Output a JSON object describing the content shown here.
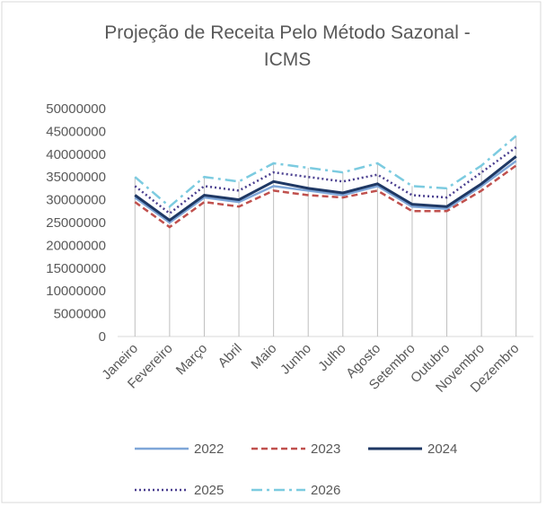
{
  "chart_data": {
    "type": "line",
    "title": "Projeção de Receita Pelo Método Sazonal - ICMS",
    "categories": [
      "Janeiro",
      "Fevereiro",
      "Março",
      "Abril",
      "Maio",
      "Junho",
      "Julho",
      "Agosto",
      "Setembro",
      "Outubro",
      "Novembro",
      "Dezembro"
    ],
    "series": [
      {
        "name": "2022",
        "color": "#7ea6d8",
        "dash": "solid",
        "values": [
          30500000,
          25000000,
          30500000,
          29500000,
          33000000,
          32000000,
          31000000,
          33000000,
          28500000,
          28000000,
          33000000,
          38500000
        ]
      },
      {
        "name": "2023",
        "color": "#c0504d",
        "dash": "dashed",
        "values": [
          29500000,
          24000000,
          29500000,
          28500000,
          32000000,
          31000000,
          30500000,
          32000000,
          27500000,
          27500000,
          32000000,
          37500000
        ]
      },
      {
        "name": "2024",
        "color": "#1f3864",
        "dash": "solid",
        "values": [
          31000000,
          25500000,
          31000000,
          30000000,
          34000000,
          32500000,
          31500000,
          33500000,
          29000000,
          28500000,
          33500000,
          39500000
        ]
      },
      {
        "name": "2025",
        "color": "#4a3f8f",
        "dash": "dotted",
        "values": [
          33000000,
          27000000,
          33000000,
          32000000,
          36000000,
          35000000,
          34000000,
          35500000,
          31000000,
          30500000,
          36000000,
          41500000
        ]
      },
      {
        "name": "2026",
        "color": "#7ccbe0",
        "dash": "dashdot",
        "values": [
          35000000,
          28500000,
          35000000,
          34000000,
          38000000,
          37000000,
          36000000,
          38000000,
          33000000,
          32500000,
          37500000,
          44000000
        ]
      }
    ],
    "ylim": [
      0,
      50000000
    ],
    "yticks": [
      0,
      5000000,
      10000000,
      15000000,
      20000000,
      25000000,
      30000000,
      35000000,
      40000000,
      45000000,
      50000000
    ],
    "drop_lines": true
  }
}
